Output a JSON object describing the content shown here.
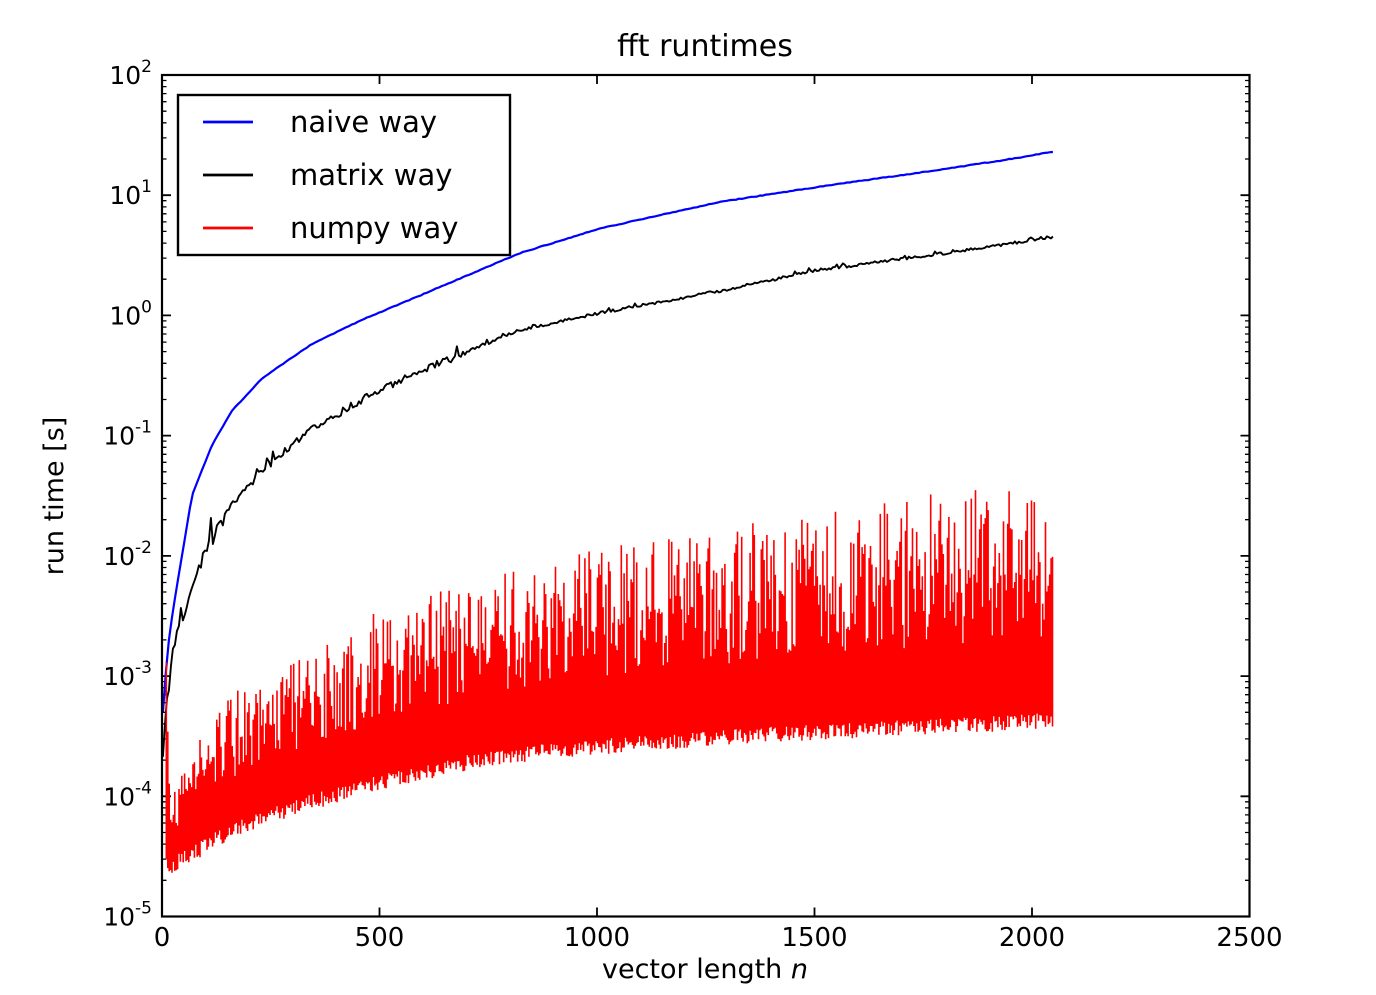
{
  "figure": {
    "title": "fft runtimes",
    "xlabel": {
      "text": "vector length ",
      "math": "n"
    },
    "ylabel": "run time [s]",
    "background": "#ffffff"
  },
  "legend": {
    "items": [
      {
        "label": "naive way",
        "color": "#0000ff"
      },
      {
        "label": "matrix way",
        "color": "#000000"
      },
      {
        "label": "numpy way",
        "color": "#ff0000"
      }
    ]
  },
  "chart_data": {
    "type": "line",
    "title": "fft runtimes",
    "xlabel": "vector length n",
    "ylabel": "run time [s]",
    "x_scale": "linear",
    "y_scale": "log",
    "xlim": [
      0,
      2500
    ],
    "ylim": [
      1e-05,
      100
    ],
    "grid": false,
    "legend_position": "upper left",
    "x_ticks": [
      0,
      500,
      1000,
      1500,
      2000,
      2500
    ],
    "y_tick_exponents": [
      2,
      1,
      0,
      -1,
      -2,
      -3,
      -4,
      -5
    ],
    "series": [
      {
        "name": "naive way",
        "color": "#0000ff",
        "style": "smooth line, roughly proportional to n^2, ends at n=2048",
        "points": [
          [
            2,
            0.0005
          ],
          [
            8,
            0.001
          ],
          [
            15,
            0.0019
          ],
          [
            25,
            0.0035
          ],
          [
            40,
            0.0075
          ],
          [
            69,
            0.032
          ],
          [
            115,
            0.084
          ],
          [
            160,
            0.16
          ],
          [
            230,
            0.3
          ],
          [
            345,
            0.58
          ],
          [
            460,
            0.92
          ],
          [
            600,
            1.5
          ],
          [
            823,
            3.3
          ],
          [
            1007,
            5.3
          ],
          [
            1283,
            8.8
          ],
          [
            1513,
            11.8
          ],
          [
            1800,
            16.5
          ],
          [
            1950,
            20.0
          ],
          [
            2048,
            23.0
          ]
        ]
      },
      {
        "name": "matrix way",
        "color": "#000000",
        "style": "noisy line ~5x below naive way, small spike near n=111, ends at n=2048",
        "points": [
          [
            2,
            0.00024
          ],
          [
            8,
            0.00045
          ],
          [
            15,
            0.0008
          ],
          [
            25,
            0.0015
          ],
          [
            40,
            0.0026
          ],
          [
            69,
            0.0052
          ],
          [
            108,
            0.013
          ],
          [
            111,
            0.024
          ],
          [
            114,
            0.0135
          ],
          [
            160,
            0.026
          ],
          [
            230,
            0.052
          ],
          [
            345,
            0.112
          ],
          [
            460,
            0.2
          ],
          [
            600,
            0.35
          ],
          [
            823,
            0.76
          ],
          [
            1007,
            1.05
          ],
          [
            1283,
            1.6
          ],
          [
            1513,
            2.4
          ],
          [
            1800,
            3.3
          ],
          [
            2048,
            4.5
          ]
        ]
      },
      {
        "name": "numpy way",
        "color": "#ff0000",
        "style": "violently oscillating trace filling the band between low and high envelopes; initial transient spike near n=11; ends at n=2048",
        "envelope_points": [
          [
            10,
            3.2e-05,
            0.0013
          ],
          [
            14,
            3e-05,
            0.00025
          ],
          [
            20,
            3e-05,
            9e-05
          ],
          [
            30,
            3.2e-05,
            0.00013
          ],
          [
            50,
            3.5e-05,
            0.0002
          ],
          [
            80,
            4e-05,
            0.0003
          ],
          [
            120,
            5e-05,
            0.0005
          ],
          [
            180,
            6.5e-05,
            0.0008
          ],
          [
            250,
            8e-05,
            0.0012
          ],
          [
            350,
            0.000105,
            0.002
          ],
          [
            500,
            0.00015,
            0.0035
          ],
          [
            700,
            0.00022,
            0.006
          ],
          [
            900,
            0.00028,
            0.0095
          ],
          [
            1100,
            0.00032,
            0.014
          ],
          [
            1400,
            0.00038,
            0.021
          ],
          [
            1700,
            0.00043,
            0.03
          ],
          [
            1900,
            0.00046,
            0.038
          ],
          [
            2048,
            0.0005,
            0.045
          ]
        ],
        "x_end": 2048
      }
    ],
    "noise_model": {
      "seed": 1337,
      "red_core_frac": [
        0.32,
        0.65
      ],
      "red_spike_prob": 0.58,
      "red_spike_frac": [
        0.58,
        1.0
      ],
      "red_low_jitter_decades": 0.13,
      "black_noise_decades_low_n": 0.055,
      "black_noise_decades_high_n": 0.012,
      "blue_noise_decades": 0.003
    }
  }
}
